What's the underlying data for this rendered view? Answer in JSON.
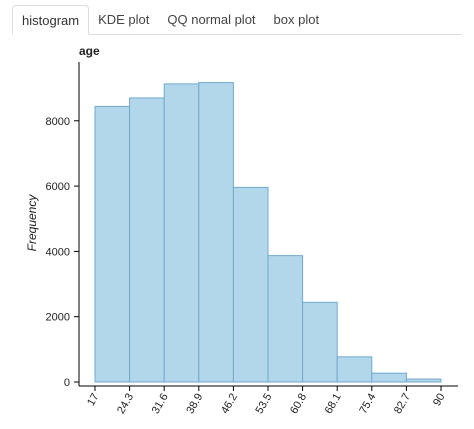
{
  "tabs": [
    {
      "label": "histogram",
      "active": true
    },
    {
      "label": "KDE plot",
      "active": false
    },
    {
      "label": "QQ normal plot",
      "active": false
    },
    {
      "label": "box plot",
      "active": false
    }
  ],
  "colors": {
    "bar_fill": "#b3d7ea",
    "bar_edge": "#6fa9cf"
  },
  "chart_data": {
    "type": "bar",
    "title": "age",
    "xlabel": "",
    "ylabel": "Frequency",
    "bin_edges": [
      17,
      24.3,
      31.6,
      38.9,
      46.2,
      53.5,
      60.8,
      68.1,
      75.4,
      82.7,
      90
    ],
    "x_tick_labels": [
      "17",
      "24.3",
      "31.6",
      "38.9",
      "46.2",
      "53.5",
      "60.8",
      "68.1",
      "75.4",
      "82.7",
      "90"
    ],
    "values": [
      8440,
      8700,
      9130,
      9170,
      5960,
      3870,
      2440,
      770,
      270,
      90
    ],
    "y_ticks": [
      0,
      2000,
      4000,
      6000,
      8000
    ],
    "ylim": [
      0,
      9800
    ],
    "grid": false
  }
}
